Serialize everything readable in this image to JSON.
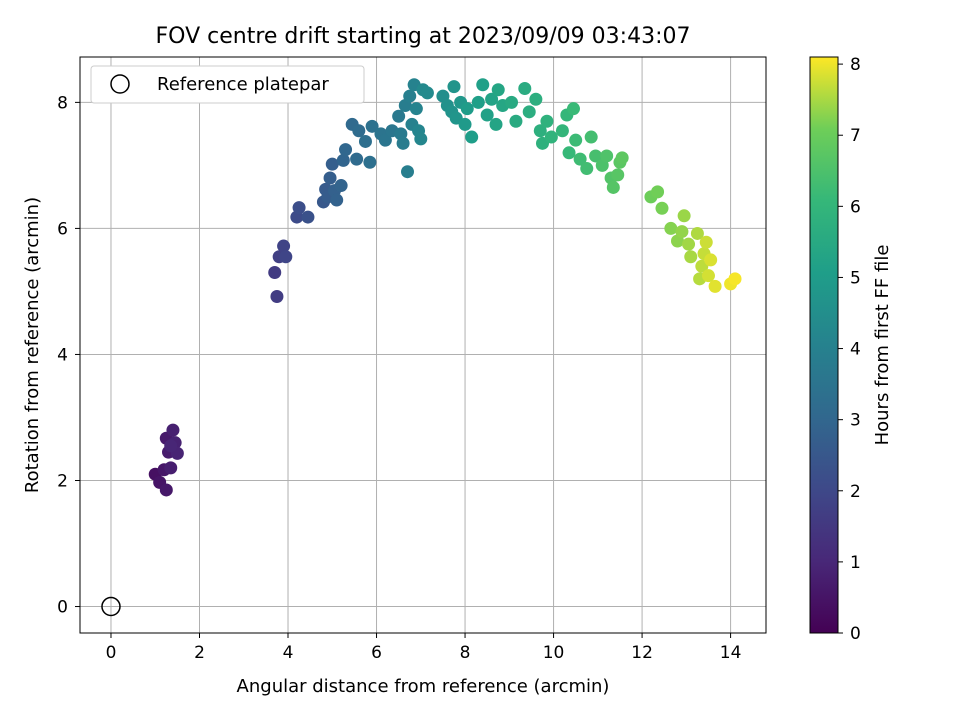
{
  "chart_data": {
    "type": "scatter",
    "title": "FOV centre drift starting at 2023/09/09 03:43:07",
    "xlabel": "Angular distance from reference (arcmin)",
    "ylabel": "Rotation from reference (arcmin)",
    "xlim": [
      -0.7,
      14.8
    ],
    "ylim": [
      -0.42,
      8.72
    ],
    "xticks": [
      0,
      2,
      4,
      6,
      8,
      10,
      12,
      14
    ],
    "yticks": [
      0,
      2,
      4,
      6,
      8
    ],
    "grid": true,
    "legend": {
      "position": "top-left",
      "entries": [
        "Reference platepar"
      ]
    },
    "reference_point": {
      "x": 0,
      "y": 0,
      "label": "Reference platepar"
    },
    "colorbar": {
      "label": "Hours from first FF file",
      "colormap": "viridis",
      "range": [
        0,
        8.1
      ],
      "ticks": [
        0,
        1,
        2,
        3,
        4,
        5,
        6,
        7,
        8
      ]
    },
    "series": [
      {
        "color_by": "hours",
        "points": [
          {
            "x": 1.0,
            "y": 2.1,
            "c": 0.4
          },
          {
            "x": 1.1,
            "y": 1.97,
            "c": 0.5
          },
          {
            "x": 1.2,
            "y": 2.17,
            "c": 0.55
          },
          {
            "x": 1.25,
            "y": 1.85,
            "c": 0.6
          },
          {
            "x": 1.25,
            "y": 2.67,
            "c": 0.65
          },
          {
            "x": 1.3,
            "y": 2.45,
            "c": 0.7
          },
          {
            "x": 1.35,
            "y": 2.2,
            "c": 0.75
          },
          {
            "x": 1.4,
            "y": 2.8,
            "c": 0.8
          },
          {
            "x": 1.45,
            "y": 2.6,
            "c": 0.85
          },
          {
            "x": 1.5,
            "y": 2.43,
            "c": 0.9
          },
          {
            "x": 1.35,
            "y": 2.55,
            "c": 0.95
          },
          {
            "x": 3.7,
            "y": 5.3,
            "c": 1.6
          },
          {
            "x": 3.75,
            "y": 4.92,
            "c": 1.65
          },
          {
            "x": 3.8,
            "y": 5.55,
            "c": 1.75
          },
          {
            "x": 3.9,
            "y": 5.72,
            "c": 1.85
          },
          {
            "x": 3.95,
            "y": 5.55,
            "c": 1.9
          },
          {
            "x": 4.2,
            "y": 6.18,
            "c": 2.1
          },
          {
            "x": 4.25,
            "y": 6.33,
            "c": 2.2
          },
          {
            "x": 4.45,
            "y": 6.18,
            "c": 2.3
          },
          {
            "x": 4.8,
            "y": 6.42,
            "c": 2.5
          },
          {
            "x": 4.85,
            "y": 6.62,
            "c": 2.6
          },
          {
            "x": 4.9,
            "y": 6.5,
            "c": 2.65
          },
          {
            "x": 4.95,
            "y": 6.8,
            "c": 2.7
          },
          {
            "x": 5.0,
            "y": 7.02,
            "c": 2.75
          },
          {
            "x": 5.05,
            "y": 6.6,
            "c": 2.8
          },
          {
            "x": 5.1,
            "y": 6.45,
            "c": 2.85
          },
          {
            "x": 5.2,
            "y": 6.68,
            "c": 2.9
          },
          {
            "x": 5.25,
            "y": 7.08,
            "c": 2.95
          },
          {
            "x": 5.3,
            "y": 7.25,
            "c": 3.0
          },
          {
            "x": 5.45,
            "y": 7.65,
            "c": 3.1
          },
          {
            "x": 5.55,
            "y": 7.1,
            "c": 3.15
          },
          {
            "x": 5.6,
            "y": 7.55,
            "c": 3.2
          },
          {
            "x": 5.75,
            "y": 7.38,
            "c": 3.3
          },
          {
            "x": 5.85,
            "y": 7.05,
            "c": 3.35
          },
          {
            "x": 5.9,
            "y": 7.62,
            "c": 3.4
          },
          {
            "x": 6.1,
            "y": 7.5,
            "c": 3.5
          },
          {
            "x": 6.2,
            "y": 7.4,
            "c": 3.55
          },
          {
            "x": 6.35,
            "y": 7.55,
            "c": 3.6
          },
          {
            "x": 6.5,
            "y": 7.78,
            "c": 3.7
          },
          {
            "x": 6.55,
            "y": 7.5,
            "c": 3.75
          },
          {
            "x": 6.6,
            "y": 7.35,
            "c": 3.8
          },
          {
            "x": 6.65,
            "y": 7.95,
            "c": 3.85
          },
          {
            "x": 6.7,
            "y": 6.9,
            "c": 3.9
          },
          {
            "x": 6.75,
            "y": 8.1,
            "c": 3.95
          },
          {
            "x": 6.8,
            "y": 7.65,
            "c": 4.0
          },
          {
            "x": 6.85,
            "y": 8.28,
            "c": 4.05
          },
          {
            "x": 6.9,
            "y": 7.9,
            "c": 4.1
          },
          {
            "x": 6.95,
            "y": 7.55,
            "c": 4.15
          },
          {
            "x": 7.0,
            "y": 7.42,
            "c": 4.2
          },
          {
            "x": 7.05,
            "y": 8.2,
            "c": 4.3
          },
          {
            "x": 7.15,
            "y": 8.15,
            "c": 4.35
          },
          {
            "x": 7.5,
            "y": 8.1,
            "c": 4.5
          },
          {
            "x": 7.6,
            "y": 7.95,
            "c": 4.6
          },
          {
            "x": 7.7,
            "y": 7.85,
            "c": 4.65
          },
          {
            "x": 7.75,
            "y": 8.25,
            "c": 4.7
          },
          {
            "x": 7.8,
            "y": 7.75,
            "c": 4.75
          },
          {
            "x": 7.9,
            "y": 8.0,
            "c": 4.8
          },
          {
            "x": 8.0,
            "y": 7.65,
            "c": 4.9
          },
          {
            "x": 8.05,
            "y": 7.9,
            "c": 5.0
          },
          {
            "x": 8.15,
            "y": 7.45,
            "c": 5.05
          },
          {
            "x": 8.3,
            "y": 8.0,
            "c": 5.1
          },
          {
            "x": 8.4,
            "y": 8.28,
            "c": 5.15
          },
          {
            "x": 8.5,
            "y": 7.8,
            "c": 5.2
          },
          {
            "x": 8.6,
            "y": 8.05,
            "c": 5.25
          },
          {
            "x": 8.7,
            "y": 7.65,
            "c": 5.3
          },
          {
            "x": 8.75,
            "y": 8.2,
            "c": 5.35
          },
          {
            "x": 8.85,
            "y": 7.95,
            "c": 5.4
          },
          {
            "x": 9.05,
            "y": 8.0,
            "c": 5.5
          },
          {
            "x": 9.15,
            "y": 7.7,
            "c": 5.55
          },
          {
            "x": 9.35,
            "y": 8.22,
            "c": 5.6
          },
          {
            "x": 9.45,
            "y": 7.85,
            "c": 5.65
          },
          {
            "x": 9.6,
            "y": 8.05,
            "c": 5.7
          },
          {
            "x": 9.7,
            "y": 7.55,
            "c": 5.75
          },
          {
            "x": 9.75,
            "y": 7.35,
            "c": 5.8
          },
          {
            "x": 9.85,
            "y": 7.7,
            "c": 5.85
          },
          {
            "x": 9.95,
            "y": 7.45,
            "c": 5.9
          },
          {
            "x": 10.2,
            "y": 7.55,
            "c": 6.0
          },
          {
            "x": 10.3,
            "y": 7.8,
            "c": 6.05
          },
          {
            "x": 10.35,
            "y": 7.2,
            "c": 6.1
          },
          {
            "x": 10.45,
            "y": 7.9,
            "c": 6.15
          },
          {
            "x": 10.5,
            "y": 7.4,
            "c": 6.2
          },
          {
            "x": 10.6,
            "y": 7.1,
            "c": 6.25
          },
          {
            "x": 10.75,
            "y": 6.95,
            "c": 6.3
          },
          {
            "x": 10.85,
            "y": 7.45,
            "c": 6.35
          },
          {
            "x": 10.95,
            "y": 7.15,
            "c": 6.4
          },
          {
            "x": 11.1,
            "y": 7.0,
            "c": 6.5
          },
          {
            "x": 11.2,
            "y": 7.15,
            "c": 6.55
          },
          {
            "x": 11.3,
            "y": 6.8,
            "c": 6.6
          },
          {
            "x": 11.35,
            "y": 6.65,
            "c": 6.65
          },
          {
            "x": 11.45,
            "y": 6.85,
            "c": 6.7
          },
          {
            "x": 11.5,
            "y": 7.05,
            "c": 6.75
          },
          {
            "x": 11.55,
            "y": 7.12,
            "c": 6.8
          },
          {
            "x": 12.2,
            "y": 6.5,
            "c": 7.05
          },
          {
            "x": 12.35,
            "y": 6.58,
            "c": 7.1
          },
          {
            "x": 12.45,
            "y": 6.32,
            "c": 7.15
          },
          {
            "x": 12.65,
            "y": 6.0,
            "c": 7.25
          },
          {
            "x": 12.8,
            "y": 5.8,
            "c": 7.3
          },
          {
            "x": 12.9,
            "y": 5.95,
            "c": 7.35
          },
          {
            "x": 12.95,
            "y": 6.2,
            "c": 7.4
          },
          {
            "x": 13.05,
            "y": 5.75,
            "c": 7.45
          },
          {
            "x": 13.1,
            "y": 5.55,
            "c": 7.5
          },
          {
            "x": 13.25,
            "y": 5.92,
            "c": 7.55
          },
          {
            "x": 13.3,
            "y": 5.2,
            "c": 7.6
          },
          {
            "x": 13.35,
            "y": 5.4,
            "c": 7.65
          },
          {
            "x": 13.4,
            "y": 5.6,
            "c": 7.7
          },
          {
            "x": 13.45,
            "y": 5.78,
            "c": 7.75
          },
          {
            "x": 13.5,
            "y": 5.25,
            "c": 7.8
          },
          {
            "x": 13.55,
            "y": 5.5,
            "c": 7.85
          },
          {
            "x": 13.65,
            "y": 5.08,
            "c": 7.9
          },
          {
            "x": 14.0,
            "y": 5.12,
            "c": 8.0
          },
          {
            "x": 14.1,
            "y": 5.2,
            "c": 8.05
          }
        ]
      }
    ]
  }
}
